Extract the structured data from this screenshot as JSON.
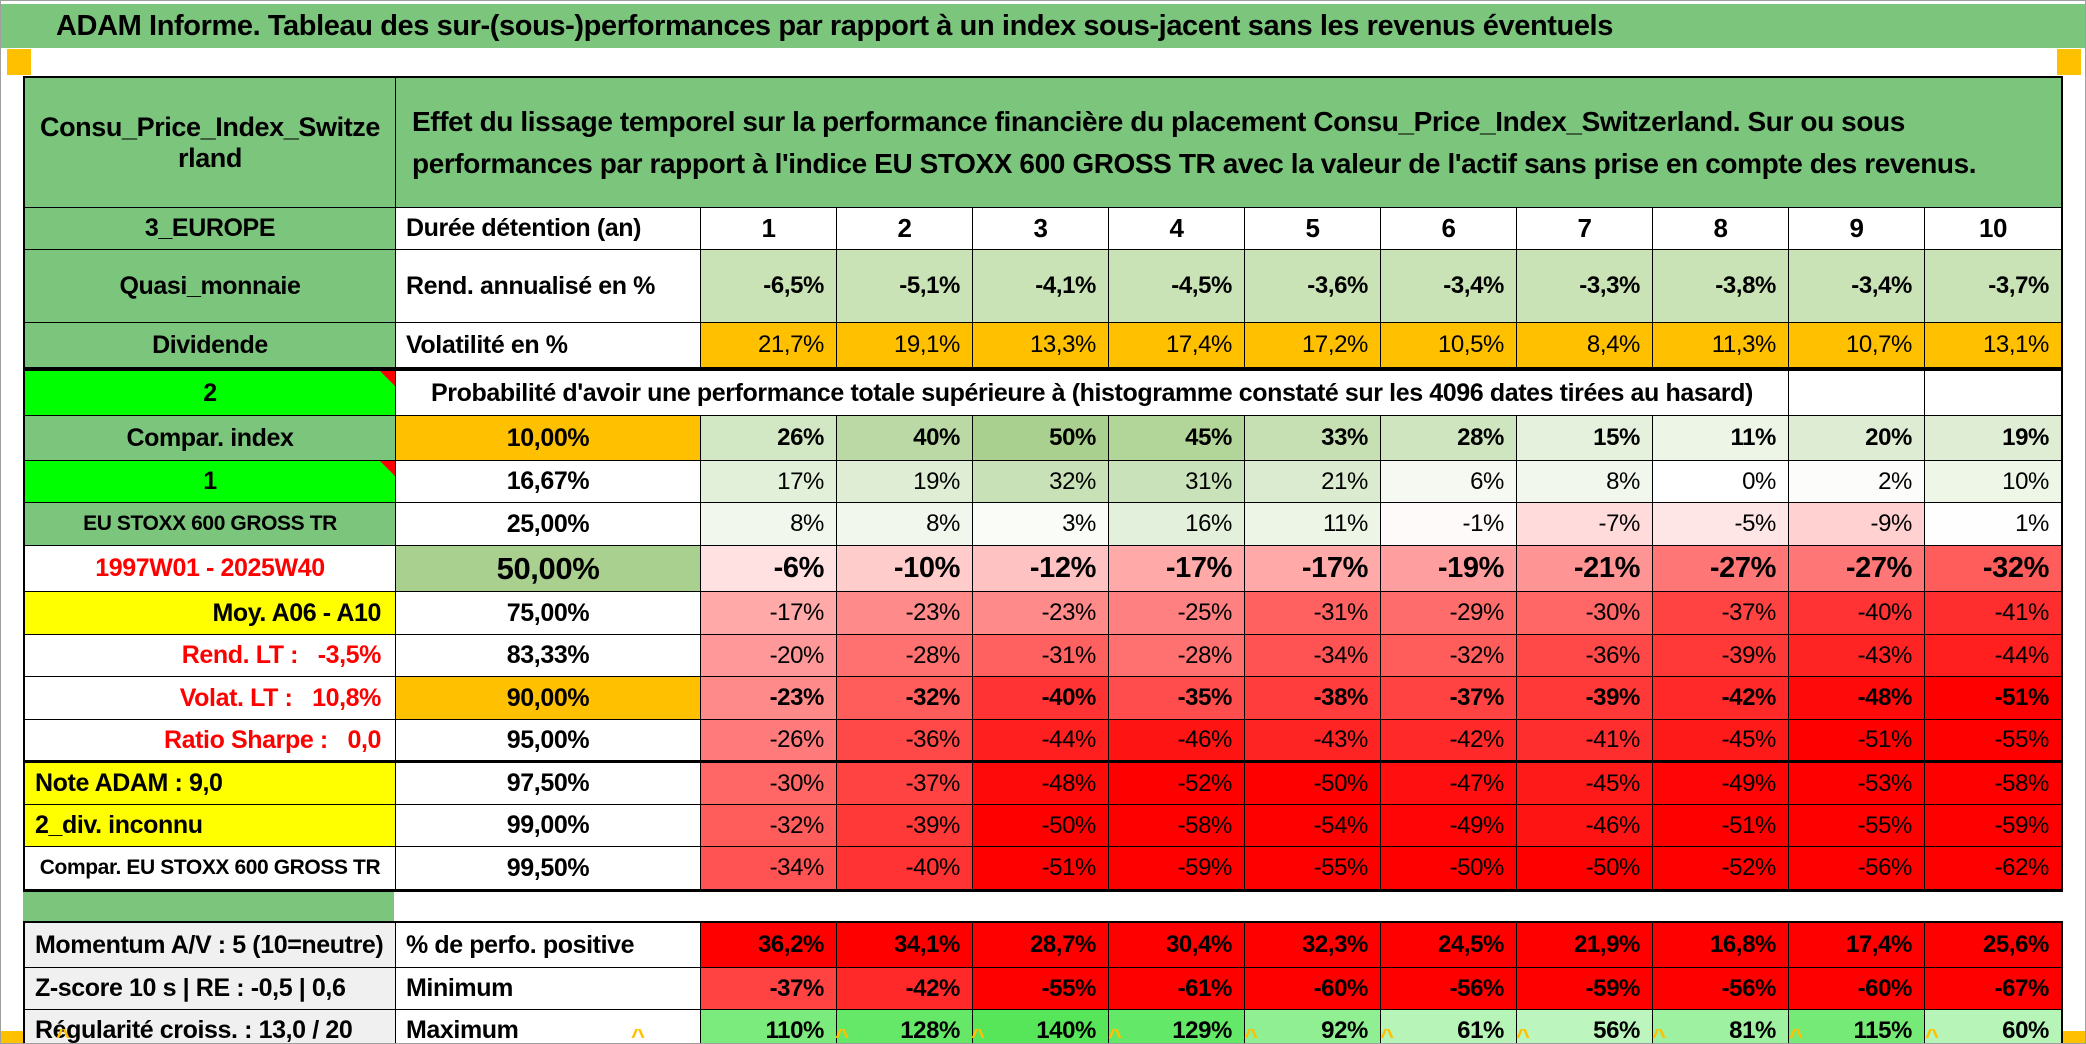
{
  "title": "ADAM Informe. Tableau des sur-(sous-)performances par rapport à un index sous-jacent sans les revenus éventuels",
  "header": {
    "asset_name": "Consu_Price_Index_Switzerland",
    "description": "Effet du lissage temporel sur la performance financière du placement Consu_Price_Index_Switzerland. Sur ou sous performances par rapport à l'indice EU STOXX 600 GROSS TR avec la valeur de l'actif sans prise en compte des revenus."
  },
  "colors": {
    "header_green": "#7CC57D",
    "bright_green": "#00FF00",
    "orange": "#FFC000",
    "yellow": "#FFFF00",
    "mid_green": "#A9D08E",
    "pale_green": "#C9E3B6",
    "full_red": "#FF0000",
    "gray_label": "#F0F0F0",
    "red_text": "#FF0000"
  },
  "top_rows": [
    {
      "label": "3_EUROPE",
      "label_style": "green",
      "metric": "Durée détention (an)",
      "values": [
        "1",
        "2",
        "3",
        "4",
        "5",
        "6",
        "7",
        "8",
        "9",
        "10"
      ],
      "value_style": "duration",
      "cell_bg": "white"
    },
    {
      "label": "Quasi_monnaie",
      "label_style": "green",
      "metric": "Rend. annualisé en %",
      "values": [
        "-6,5%",
        "-5,1%",
        "-4,1%",
        "-4,5%",
        "-3,6%",
        "-3,4%",
        "-3,3%",
        "-3,8%",
        "-3,4%",
        "-3,7%"
      ],
      "value_style": "bold",
      "cell_bg": "pale_green"
    },
    {
      "label": "Dividende",
      "label_style": "green",
      "metric": "Volatilité en %",
      "values": [
        "21,7%",
        "19,1%",
        "13,3%",
        "17,4%",
        "17,2%",
        "10,5%",
        "8,4%",
        "11,3%",
        "10,7%",
        "13,1%"
      ],
      "value_style": "normal",
      "cell_bg": "orange"
    }
  ],
  "prob_section": {
    "corner_label": "2",
    "header_text": "Probabilité d'avoir une performance totale supérieure à (histogramme constaté sur les 4096 dates tirées au hasard)",
    "empty_trailing_cells": 2,
    "rows": [
      {
        "label": "Compar. index",
        "label_style": "green",
        "threshold": "10,00%",
        "th_style": "orange",
        "bold": true,
        "values": [
          26,
          40,
          50,
          45,
          33,
          28,
          15,
          11,
          20,
          19
        ]
      },
      {
        "label": "1",
        "label_style": "bright",
        "red_corner": true,
        "threshold": "16,67%",
        "th_style": "white",
        "values": [
          17,
          19,
          32,
          31,
          21,
          6,
          8,
          0,
          2,
          10
        ]
      },
      {
        "label": "EU STOXX 600 GROSS TR",
        "label_style": "green small",
        "threshold": "25,00%",
        "th_style": "white",
        "values": [
          8,
          8,
          3,
          16,
          11,
          -1,
          -7,
          -5,
          -9,
          1
        ]
      },
      {
        "label": "1997W01 - 2025W40",
        "label_style": "white redtxt",
        "threshold": "50,00%",
        "th_style": "midgreen",
        "bold": true,
        "big": true,
        "values": [
          -6,
          -10,
          -12,
          -17,
          -17,
          -19,
          -21,
          -27,
          -27,
          -32
        ]
      },
      {
        "label": "Moy. A06 - A10",
        "label_style": "yellow right",
        "threshold": "75,00%",
        "th_style": "white",
        "values": [
          -17,
          -23,
          -23,
          -25,
          -31,
          -29,
          -30,
          -37,
          -40,
          -41
        ]
      },
      {
        "label": "Rend. LT :   -3,5%",
        "label_style": "white redtxt right",
        "threshold": "83,33%",
        "th_style": "white",
        "values": [
          -20,
          -28,
          -31,
          -28,
          -34,
          -32,
          -36,
          -39,
          -43,
          -44
        ]
      },
      {
        "label": "Volat. LT :   10,8%",
        "label_style": "white redtxt right",
        "threshold": "90,00%",
        "th_style": "orange",
        "bold": true,
        "values": [
          -23,
          -32,
          -40,
          -35,
          -38,
          -37,
          -39,
          -42,
          -48,
          -51
        ]
      },
      {
        "label": "Ratio Sharpe :   0,0",
        "label_style": "white redtxt right",
        "threshold": "95,00%",
        "th_style": "white",
        "thick_bottom": true,
        "values": [
          -26,
          -36,
          -44,
          -46,
          -43,
          -42,
          -41,
          -45,
          -51,
          -55
        ]
      },
      {
        "label": "Note ADAM : 9,0",
        "label_style": "yellow left",
        "threshold": "97,50%",
        "th_style": "white",
        "values": [
          -30,
          -37,
          -48,
          -52,
          -50,
          -47,
          -45,
          -49,
          -53,
          -58
        ]
      },
      {
        "label": "2_div. inconnu",
        "label_style": "yellow left",
        "threshold": "99,00%",
        "th_style": "white",
        "values": [
          -32,
          -39,
          -50,
          -58,
          -54,
          -49,
          -46,
          -51,
          -55,
          -59
        ]
      },
      {
        "label": "Compar. EU STOXX 600 GROSS TR",
        "label_style": "white small",
        "threshold": "99,50%",
        "th_style": "white",
        "values": [
          -34,
          -40,
          -51,
          -59,
          -55,
          -50,
          -50,
          -52,
          -56,
          -62
        ]
      }
    ]
  },
  "bottom_rows": [
    {
      "label": "Momentum A/V : 5 (10=neutre)",
      "metric": "% de perfo. positive",
      "scale": "red",
      "values": [
        "36,2%",
        "34,1%",
        "28,7%",
        "30,4%",
        "32,3%",
        "24,5%",
        "21,9%",
        "16,8%",
        "17,4%",
        "25,6%"
      ]
    },
    {
      "label": "Z-score 10 s | RE : -0,5 | 0,6",
      "metric": "Minimum",
      "scale": "neg",
      "values": [
        -37,
        -42,
        -55,
        -61,
        -60,
        -56,
        -59,
        -56,
        -60,
        -67
      ]
    },
    {
      "label": "Régularité croiss. : 13,0 / 20",
      "metric": "Maximum",
      "scale": "maxgreen",
      "values": [
        110,
        128,
        140,
        129,
        92,
        61,
        56,
        81,
        115,
        60
      ]
    }
  ]
}
